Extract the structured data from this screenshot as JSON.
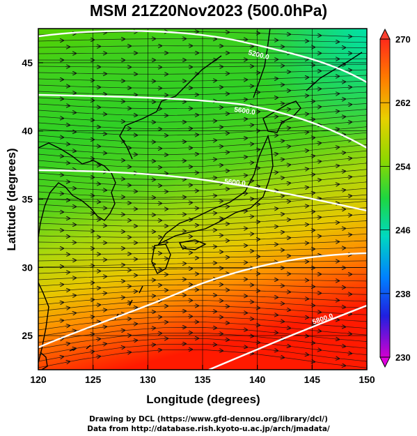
{
  "title": "MSM 21Z20Nov2023 (500.0hPa)",
  "xlabel": "Longitude (degrees)",
  "ylabel": "Latitude  (degrees)",
  "x_ticks": [
    "120",
    "125",
    "130",
    "135",
    "140",
    "145",
    "150"
  ],
  "y_ticks": [
    "25",
    "30",
    "35",
    "40",
    "45"
  ],
  "colorbar_ticks": [
    "270",
    "262",
    "254",
    "246",
    "238",
    "230"
  ],
  "contour_labels": [
    "5200.0",
    "5600.0",
    "5600.0",
    "5800.0"
  ],
  "credit_line1": "Drawing by DCL (https://www.gfd-dennou.org/library/dcl/)",
  "credit_line2": "Data from http://database.rish.kyoto-u.ac.jp/arch/jmadata/",
  "colors": {
    "cold": "#c800c8",
    "blue": "#0000ff",
    "cyan": "#00e0c0",
    "green": "#22d63a",
    "yellow": "#d4e800",
    "orange": "#ff8c00",
    "red": "#ff1a00"
  },
  "chart_data": {
    "type": "heatmap",
    "xlim": [
      120,
      150
    ],
    "ylim": [
      22.5,
      47.5
    ],
    "color_range": [
      230,
      270
    ],
    "overlay": "wind streamlines with arrows; geopotential height contours",
    "contour_levels": [
      5200.0,
      5600.0,
      5800.0
    ]
  }
}
